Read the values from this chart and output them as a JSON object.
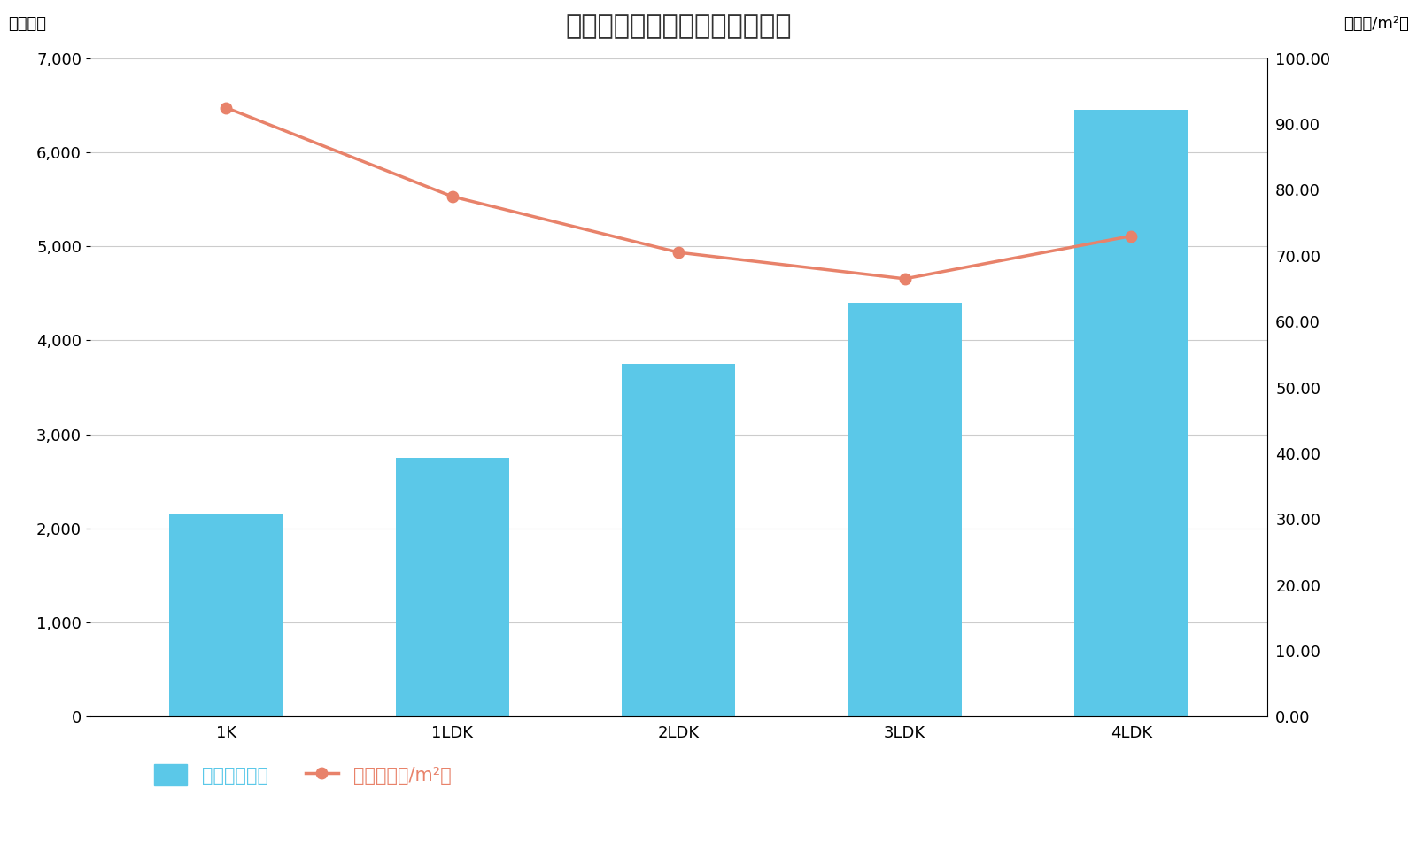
{
  "title": "板橋区間取り別マンション価格",
  "categories": [
    "1K",
    "1LDK",
    "2LDK",
    "3LDK",
    "4LDK"
  ],
  "bar_values": [
    2150,
    2750,
    3750,
    4400,
    6450
  ],
  "line_values": [
    92.5,
    79.0,
    70.5,
    66.5,
    73.0
  ],
  "bar_color": "#5BC8E8",
  "line_color": "#E8826A",
  "ylabel_left": "（万円）",
  "ylabel_right": "（万円/m²）",
  "ylim_left": [
    0,
    7000
  ],
  "ylim_right": [
    0,
    100.0
  ],
  "yticks_left": [
    0,
    1000,
    2000,
    3000,
    4000,
    5000,
    6000,
    7000
  ],
  "yticks_right": [
    0.0,
    10.0,
    20.0,
    30.0,
    40.0,
    50.0,
    60.0,
    70.0,
    80.0,
    90.0,
    100.0
  ],
  "legend_bar_label": "価格（万円）",
  "legend_line_label": "単価（万円/m²）",
  "legend_bar_color": "#5BC8E8",
  "legend_line_color": "#E8826A",
  "background_color": "#FFFFFF",
  "title_fontsize": 22,
  "axis_fontsize": 13,
  "tick_fontsize": 13,
  "legend_fontsize": 15,
  "grid_color": "#CCCCCC",
  "text_color_dark": "#555555",
  "marker": "o",
  "marker_size": 9,
  "line_width": 2.5
}
